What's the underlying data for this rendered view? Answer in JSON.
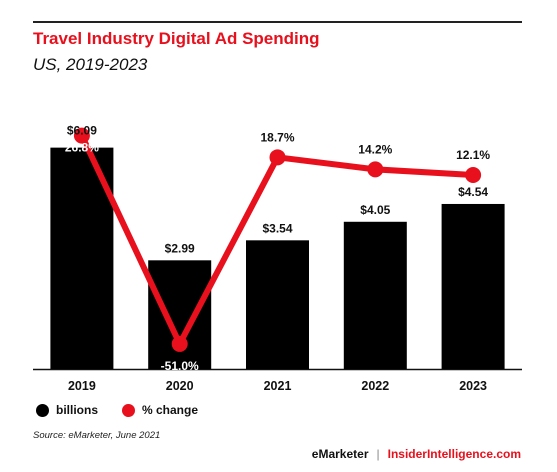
{
  "title": "Travel Industry Digital Ad Spending",
  "subtitle": "US, 2019-2023",
  "source": "Source: eMarketer, June 2021",
  "footer": {
    "brand1": "eMarketer",
    "separator": "|",
    "brand2": "InsiderIntelligence.com"
  },
  "colors": {
    "bar": "#000000",
    "line": "#e8101c",
    "title": "#e8101c"
  },
  "chart_data": {
    "type": "bar",
    "categories": [
      "2019",
      "2020",
      "2021",
      "2022",
      "2023"
    ],
    "series": [
      {
        "name": "billions",
        "type": "bar",
        "values": [
          6.09,
          2.99,
          3.54,
          4.05,
          4.54
        ],
        "labels": [
          "$6.09",
          "$2.99",
          "$3.54",
          "$4.05",
          "$4.54"
        ]
      },
      {
        "name": "% change",
        "type": "line",
        "values": [
          26.8,
          -51.0,
          18.7,
          14.2,
          12.1
        ],
        "labels": [
          "26.8%",
          "-51.0%",
          "18.7%",
          "14.2%",
          "12.1%"
        ]
      }
    ],
    "ylim_bar": [
      0,
      6.85
    ],
    "ylim_line": [
      -60,
      36
    ],
    "legend": [
      "billions",
      "% change"
    ],
    "legend_position": "bottom-left"
  }
}
